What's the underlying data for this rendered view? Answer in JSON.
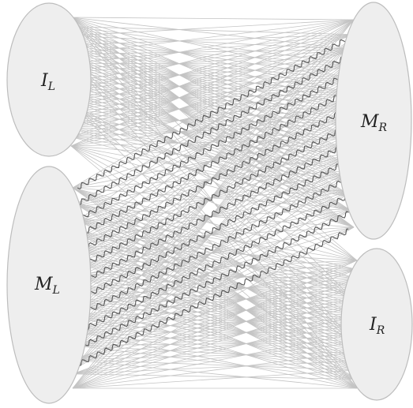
{
  "diagram": {
    "nodes": {
      "il": {
        "main": "I",
        "sub": "L"
      },
      "ml": {
        "main": "M",
        "sub": "L"
      },
      "mr": {
        "main": "M",
        "sub": "R"
      },
      "ir": {
        "main": "I",
        "sub": "R"
      }
    },
    "edge_groups": [
      {
        "from": "il",
        "to": "mr",
        "style": "straight",
        "ends_per_side": 15
      },
      {
        "from": "ml",
        "to": "ir",
        "style": "straight",
        "ends_per_side": 15
      },
      {
        "from": "il",
        "to": "ir",
        "style": "straight",
        "ends_per_side": 4
      },
      {
        "from": "ml",
        "to": "mr",
        "style": "straight",
        "ends_per_side": 12
      },
      {
        "from": "ml",
        "to": "mr",
        "style": "wavy",
        "ends_per_side": 12
      }
    ],
    "colors": {
      "node_fill": "#eeeeee",
      "node_stroke": "#bdbdbd",
      "straight_edge": "#c4c4c4",
      "wavy_edge": "#555555"
    }
  }
}
